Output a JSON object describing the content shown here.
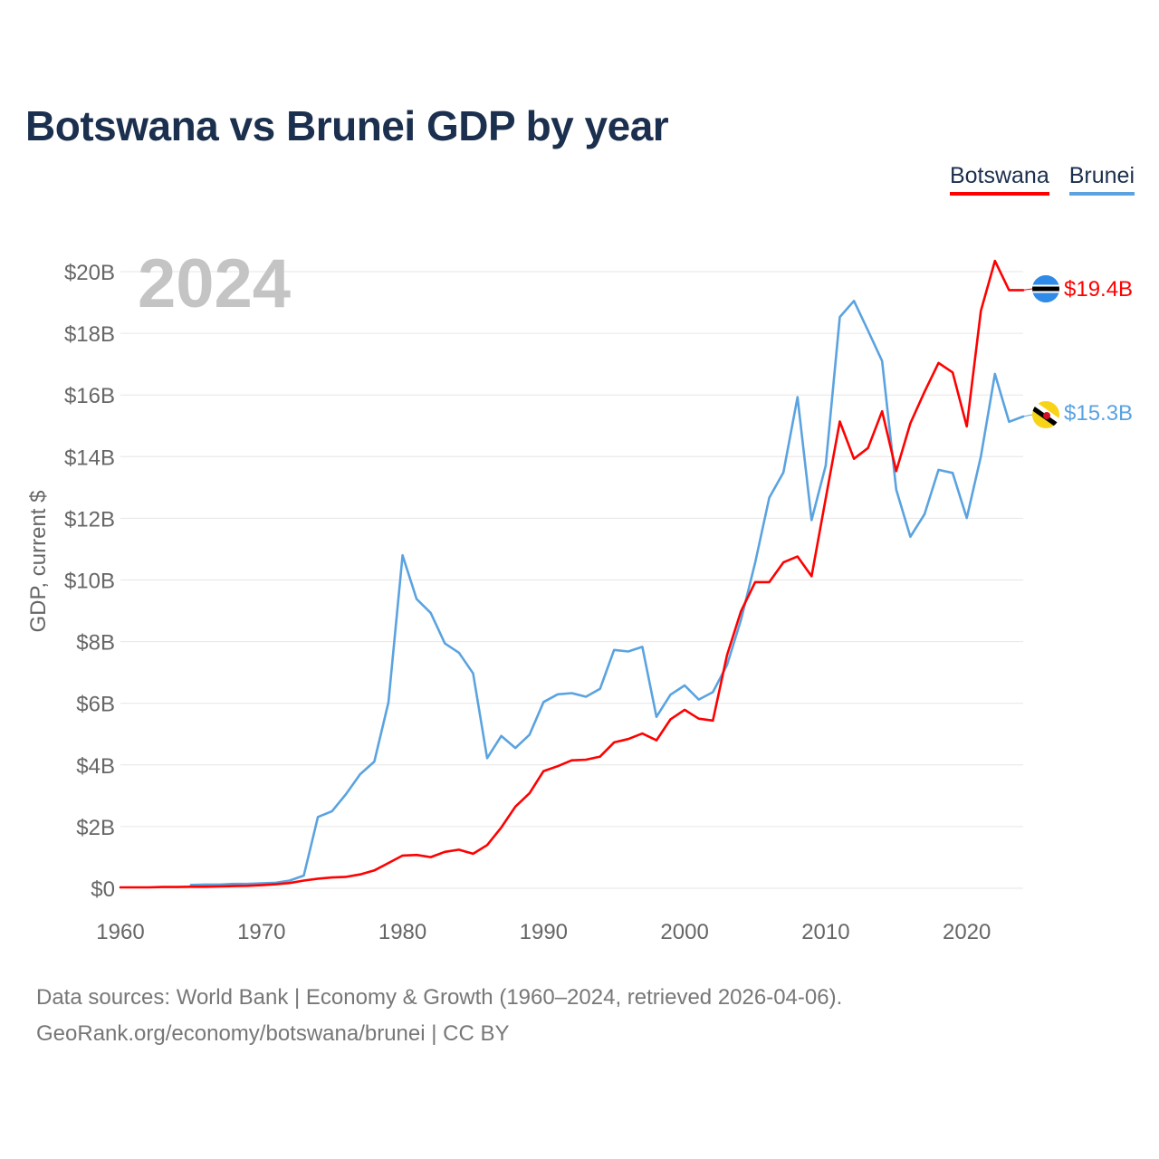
{
  "title": "Botswana vs Brunei GDP by year",
  "legend": [
    {
      "name": "Botswana",
      "color": "#ff0000"
    },
    {
      "name": "Brunei",
      "color": "#5aa3e0"
    }
  ],
  "year_label": "2024",
  "end_labels": {
    "botswana": "$19.4B",
    "brunei": "$15.3B"
  },
  "source": {
    "line1": "Data sources: World Bank | Economy & Growth (1960–2024, retrieved 2026-04-06).",
    "line2": "GeoRank.org/economy/botswana/brunei | CC BY"
  },
  "chart_data": {
    "type": "line",
    "title": "Botswana vs Brunei GDP by year",
    "xlabel": "",
    "ylabel": "GDP, current $",
    "xlim": [
      1960,
      2024
    ],
    "ylim": [
      0,
      20
    ],
    "yunit": "billion US$",
    "x_ticks": [
      1960,
      1970,
      1980,
      1990,
      2000,
      2010,
      2020
    ],
    "y_ticks": [
      0,
      2,
      4,
      6,
      8,
      10,
      12,
      14,
      16,
      18,
      20
    ],
    "y_tick_labels": [
      "$0",
      "$2B",
      "$4B",
      "$6B",
      "$8B",
      "$10B",
      "$12B",
      "$14B",
      "$16B",
      "$18B",
      "$20B"
    ],
    "grid": true,
    "legend_position": "top-right",
    "series": [
      {
        "name": "Botswana",
        "color": "#ff0000",
        "x": [
          1960,
          1961,
          1962,
          1963,
          1964,
          1965,
          1966,
          1967,
          1968,
          1969,
          1970,
          1971,
          1972,
          1973,
          1974,
          1975,
          1976,
          1977,
          1978,
          1979,
          1980,
          1981,
          1982,
          1983,
          1984,
          1985,
          1986,
          1987,
          1988,
          1989,
          1990,
          1991,
          1992,
          1993,
          1994,
          1995,
          1996,
          1997,
          1998,
          1999,
          2000,
          2001,
          2002,
          2003,
          2004,
          2005,
          2006,
          2007,
          2008,
          2009,
          2010,
          2011,
          2012,
          2013,
          2014,
          2015,
          2016,
          2017,
          2018,
          2019,
          2020,
          2021,
          2022,
          2023,
          2024
        ],
        "values": [
          0.03,
          0.03,
          0.03,
          0.04,
          0.04,
          0.05,
          0.05,
          0.06,
          0.07,
          0.08,
          0.1,
          0.13,
          0.17,
          0.25,
          0.31,
          0.35,
          0.37,
          0.45,
          0.58,
          0.82,
          1.06,
          1.08,
          1.01,
          1.18,
          1.25,
          1.12,
          1.4,
          1.97,
          2.65,
          3.08,
          3.8,
          3.96,
          4.15,
          4.17,
          4.27,
          4.73,
          4.84,
          5.02,
          4.8,
          5.48,
          5.79,
          5.5,
          5.44,
          7.56,
          8.99,
          9.93,
          9.93,
          10.57,
          10.76,
          10.12,
          12.64,
          15.14,
          13.93,
          14.28,
          15.47,
          13.53,
          15.08,
          16.1,
          17.04,
          16.73,
          14.98,
          18.73,
          20.35,
          19.4,
          19.4
        ]
      },
      {
        "name": "Brunei",
        "color": "#5aa3e0",
        "x": [
          1965,
          1966,
          1967,
          1968,
          1969,
          1970,
          1971,
          1972,
          1973,
          1974,
          1975,
          1976,
          1977,
          1978,
          1979,
          1980,
          1981,
          1982,
          1983,
          1984,
          1985,
          1986,
          1987,
          1988,
          1989,
          1990,
          1991,
          1992,
          1993,
          1994,
          1995,
          1996,
          1997,
          1998,
          1999,
          2000,
          2001,
          2002,
          2003,
          2004,
          2005,
          2006,
          2007,
          2008,
          2009,
          2010,
          2011,
          2012,
          2013,
          2014,
          2015,
          2016,
          2017,
          2018,
          2019,
          2020,
          2021,
          2022,
          2023,
          2024
        ],
        "values": [
          0.11,
          0.12,
          0.12,
          0.14,
          0.14,
          0.16,
          0.18,
          0.25,
          0.41,
          2.31,
          2.5,
          3.06,
          3.7,
          4.11,
          6.03,
          10.8,
          9.38,
          8.93,
          7.94,
          7.64,
          6.97,
          4.22,
          4.94,
          4.55,
          4.98,
          6.04,
          6.29,
          6.33,
          6.21,
          6.47,
          7.73,
          7.68,
          7.83,
          5.56,
          6.28,
          6.58,
          6.12,
          6.36,
          7.24,
          8.71,
          10.56,
          12.67,
          13.49,
          15.93,
          11.94,
          13.71,
          18.53,
          19.05,
          18.09,
          17.1,
          12.93,
          11.4,
          12.13,
          13.57,
          13.47,
          12.01,
          14.01,
          16.68,
          15.13,
          15.3
        ]
      }
    ]
  }
}
